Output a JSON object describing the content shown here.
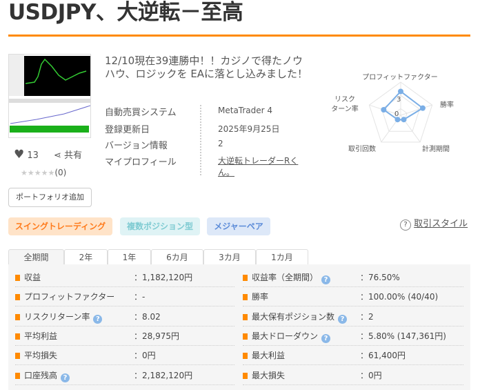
{
  "title": "USDJPY、大逆転－至高",
  "description": "12/10現在39連勝中！！カジノで得たノウハウ、ロジックを EAに落とし込みました！",
  "likes": {
    "count": "13",
    "share_label": "共有"
  },
  "rating": {
    "stars": "★★★★★",
    "count": "(0)",
    "value": 0
  },
  "portfolio_button": "ポートフォリオ追加",
  "info": [
    {
      "label": "自動売買システム",
      "value": "MetaTrader 4"
    },
    {
      "label": "登録更新日",
      "value": "2025年9月25日"
    },
    {
      "label": "バージョン情報",
      "value": "2"
    },
    {
      "label": "マイプロフィール",
      "value": "大逆転トレーダーRくん。"
    }
  ],
  "radar": {
    "axes": [
      "プロフィットファクター",
      "勝率",
      "計測期間",
      "取引回数",
      "リスクターン率"
    ],
    "axis_label_risk": [
      "リスク",
      "ターン率"
    ],
    "values": [
      3.6,
      3.5,
      0.8,
      0.8,
      2.7
    ],
    "max": 5,
    "tick_labels": [
      "3",
      "0"
    ],
    "color": "#7aaee6"
  },
  "tags": [
    {
      "label": "スイングトレーディング",
      "bg": "#ffe3c8",
      "fg": "#ff7a1a"
    },
    {
      "label": "複数ポジション型",
      "bg": "#dff3f5",
      "fg": "#7fcbd2"
    },
    {
      "label": "メジャーペア",
      "bg": "#dde8f8",
      "fg": "#5b8bd8"
    }
  ],
  "trade_style_link": "取引スタイル",
  "tabs": [
    "全期間",
    "2年",
    "1年",
    "6カ月",
    "3カ月",
    "1カ月"
  ],
  "stats_left": [
    {
      "label": "収益",
      "value": "：1,182,120円",
      "help": false
    },
    {
      "label": "プロフィットファクター",
      "value": "：-",
      "help": false
    },
    {
      "label": "リスクリターン率",
      "value": "：8.02",
      "help": true
    },
    {
      "label": "平均利益",
      "value": "：28,975円",
      "help": false
    },
    {
      "label": "平均損失",
      "value": "：0円",
      "help": false
    },
    {
      "label": "口座残高",
      "value": "：2,182,120円",
      "help": true
    }
  ],
  "stats_right": [
    {
      "label": "収益率（全期間）",
      "value": "：76.50%",
      "help": true
    },
    {
      "label": "勝率",
      "value": "：100.00% (40/40)",
      "help": false
    },
    {
      "label": "最大保有ポジション数",
      "value": "：2",
      "help": true
    },
    {
      "label": "最大ドローダウン",
      "value": "：5.80% (147,361円)",
      "help": true
    },
    {
      "label": "最大利益",
      "value": "：61,400円",
      "help": false
    },
    {
      "label": "最大損失",
      "value": "：0円",
      "help": false
    }
  ]
}
